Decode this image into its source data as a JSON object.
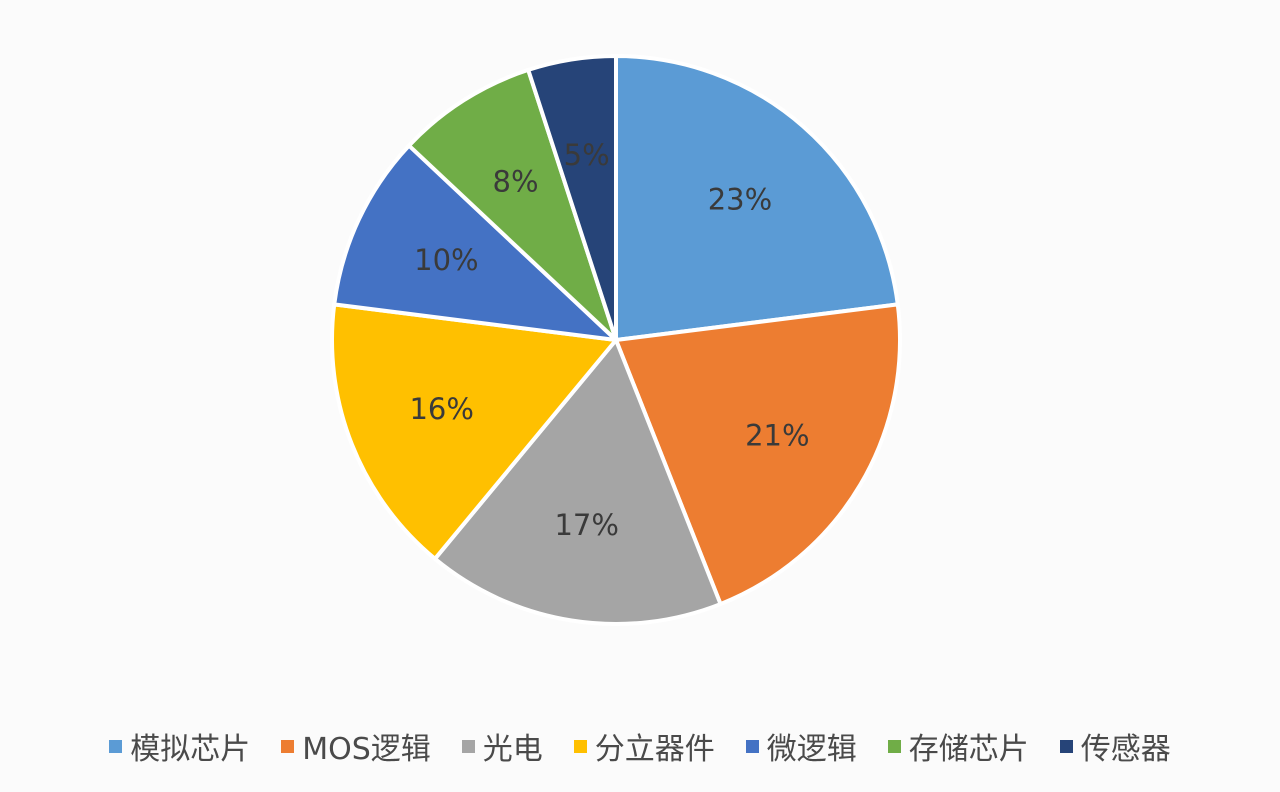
{
  "chart_data": {
    "type": "pie",
    "title": "",
    "slices": [
      {
        "label": "模拟芯片",
        "value": 23,
        "display": "23%",
        "color": "#5b9bd5",
        "label_color": "#3a3a3a"
      },
      {
        "label": "MOS逻辑",
        "value": 21,
        "display": "21%",
        "color": "#ed7d31",
        "label_color": "#3a3a3a"
      },
      {
        "label": "光电",
        "value": 17,
        "display": "17%",
        "color": "#a5a5a5",
        "label_color": "#3a3a3a"
      },
      {
        "label": "分立器件",
        "value": 16,
        "display": "16%",
        "color": "#ffc000",
        "label_color": "#a0230c"
      },
      {
        "label": "微逻辑",
        "value": 10,
        "display": "10%",
        "color": "#4472c4",
        "label_color": "#3a3a3a"
      },
      {
        "label": "存储芯片",
        "value": 8,
        "display": "8%",
        "color": "#70ad47",
        "label_color": "#3a3a3a"
      },
      {
        "label": "传感器",
        "value": 5,
        "display": "5%",
        "color": "#264478",
        "label_color": "#3a3a3a"
      }
    ],
    "legend_position": "bottom"
  }
}
